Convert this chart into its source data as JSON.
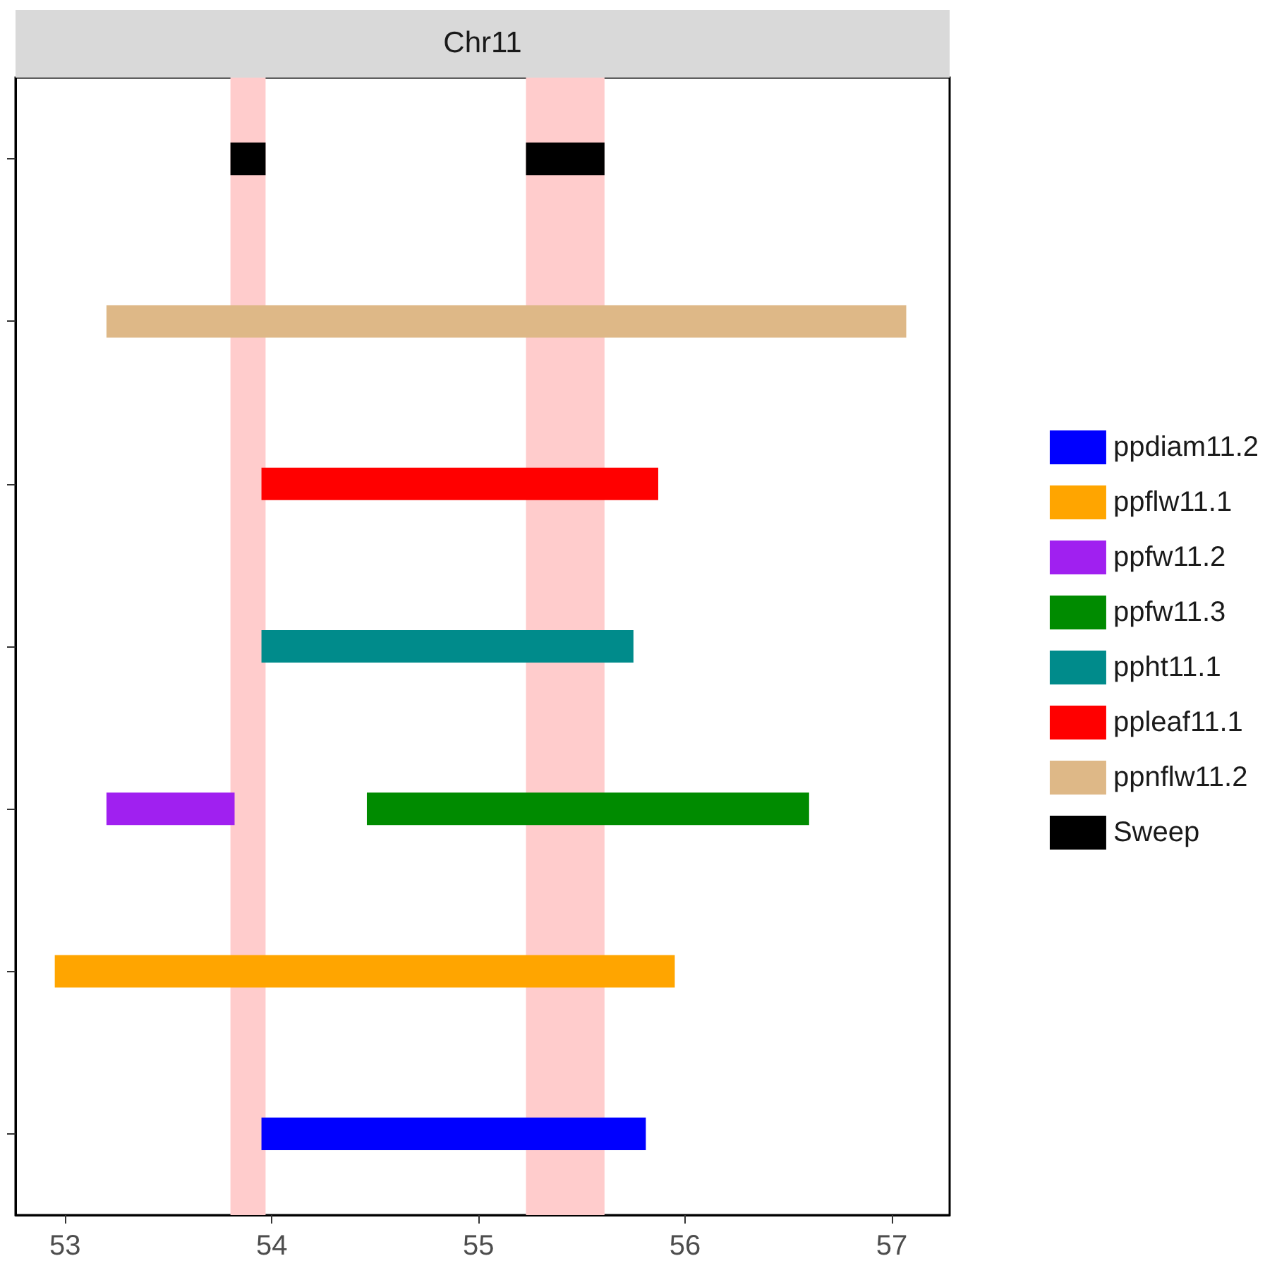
{
  "chart_data": {
    "type": "bar",
    "orientation": "horizontal",
    "title": "Chr11",
    "categories": [
      null,
      null,
      null,
      null,
      null,
      null,
      null
    ],
    "series": [
      {
        "name": "ppdiam11.2",
        "color": "#0000ff",
        "base": [
          null,
          null,
          null,
          null,
          null,
          null,
          53.95
        ],
        "values": [
          null,
          null,
          null,
          null,
          null,
          null,
          1.86
        ]
      },
      {
        "name": "ppflw11.1",
        "color": "#ffa500",
        "base": [
          null,
          null,
          null,
          null,
          null,
          52.95,
          null
        ],
        "values": [
          null,
          null,
          null,
          null,
          null,
          3.0,
          null
        ]
      },
      {
        "name": "ppfw11.2",
        "color": "#a020f0",
        "base": [
          null,
          null,
          null,
          null,
          53.2,
          null,
          null
        ],
        "values": [
          null,
          null,
          null,
          null,
          0.62,
          null,
          null
        ]
      },
      {
        "name": "ppfw11.3",
        "color": "#008b00",
        "base": [
          null,
          null,
          null,
          null,
          54.46,
          null,
          null
        ],
        "values": [
          null,
          null,
          null,
          null,
          2.14,
          null,
          null
        ]
      },
      {
        "name": "ppht11.1",
        "color": "#008b8b",
        "base": [
          null,
          null,
          null,
          53.95,
          null,
          null,
          null
        ],
        "values": [
          null,
          null,
          null,
          1.8,
          null,
          null,
          null
        ]
      },
      {
        "name": "ppleaf11.1",
        "color": "#ff0000",
        "base": [
          null,
          null,
          53.95,
          null,
          null,
          null,
          null
        ],
        "values": [
          null,
          null,
          1.92,
          null,
          null,
          null,
          null
        ]
      },
      {
        "name": "ppnflw11.2",
        "color": "#deb887",
        "base": [
          null,
          53.2,
          null,
          null,
          null,
          null,
          null
        ],
        "values": [
          null,
          3.87,
          null,
          null,
          null,
          null,
          null
        ]
      },
      {
        "name": "Sweep",
        "color": "#000000",
        "base": [
          53.8,
          null,
          null,
          null,
          null,
          null,
          null
        ],
        "values": [
          0.17,
          null,
          null,
          null,
          null,
          null,
          null
        ]
      },
      {
        "color": "#000000",
        "base": [
          55.23,
          null,
          null,
          null,
          null,
          null,
          null
        ],
        "values": [
          0.38,
          null,
          null,
          null,
          null,
          null,
          null
        ]
      }
    ],
    "xlim": [
      52.76,
      57.28
    ],
    "xticks": [
      53,
      54,
      55,
      56,
      57
    ],
    "tick_labels": "x",
    "grid": false,
    "legend": "right",
    "bands": [
      {
        "axis": "x",
        "from": 53.8,
        "to": 53.97,
        "color": "#ffcccc"
      },
      {
        "axis": "x",
        "from": 55.23,
        "to": 55.61,
        "color": "#ffcccc"
      }
    ]
  }
}
